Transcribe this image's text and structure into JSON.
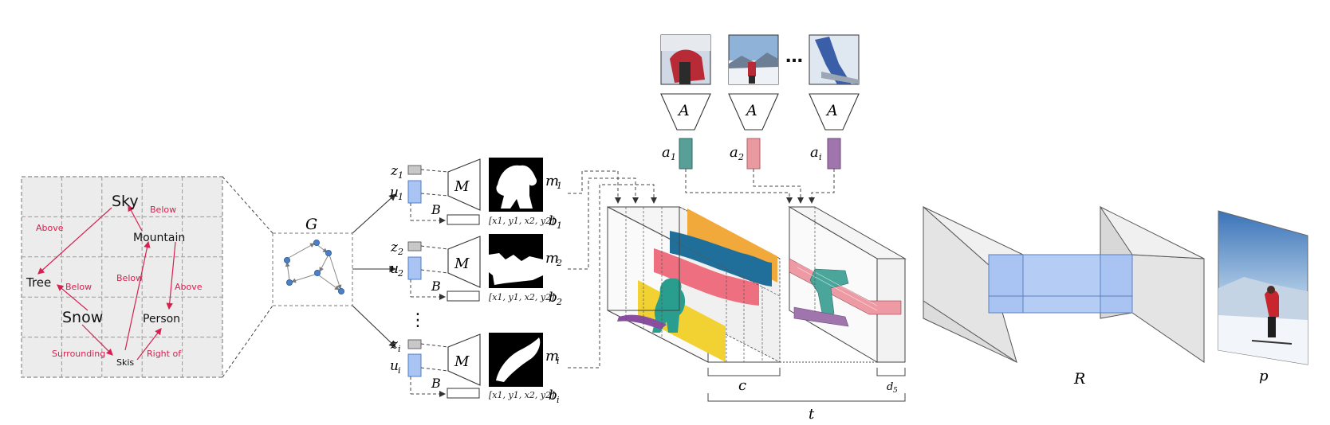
{
  "scene_graph": {
    "objects": [
      "Sky",
      "Mountain",
      "Tree",
      "Snow",
      "Person",
      "Skis"
    ],
    "relations": [
      "Above",
      "Below",
      "Below",
      "Below",
      "Above",
      "Surrounding",
      "Right of"
    ]
  },
  "graph_label": "G",
  "mask_regression": {
    "latent_label": "z",
    "embedding_label": "u",
    "mask_net_label": "M",
    "box_net_label": "B",
    "mask_label": "m",
    "box_label": "b",
    "box_coords": "[x1, y1, x2, y2]",
    "index_labels": [
      "1",
      "2",
      "i"
    ],
    "ellipsis": "⋮"
  },
  "appearance": {
    "encoder_label": "A",
    "vector_label": "a",
    "index_labels": [
      "1",
      "2",
      "i"
    ],
    "ellipsis": "…",
    "colors": [
      "#5a9e98",
      "#e89aa0",
      "#a074ac"
    ]
  },
  "layout": {
    "dim_c": "c",
    "dim_d": "d",
    "dim_d_sub": "5",
    "dim_t": "t",
    "stripe_colors": [
      "#f2a93b",
      "#1f6f9a",
      "#ee6f80",
      "#f2d233",
      "#2a9e8e",
      "#8a4ea0"
    ]
  },
  "generator_label": "R",
  "output_label": "p",
  "colors": {
    "relation": "#d6214f",
    "embedding": "#a9c4f2",
    "latent": "#c8c8c8",
    "grid_fill": "#ececec",
    "node": "#4d7fc6",
    "box": "#b5cdf4"
  }
}
